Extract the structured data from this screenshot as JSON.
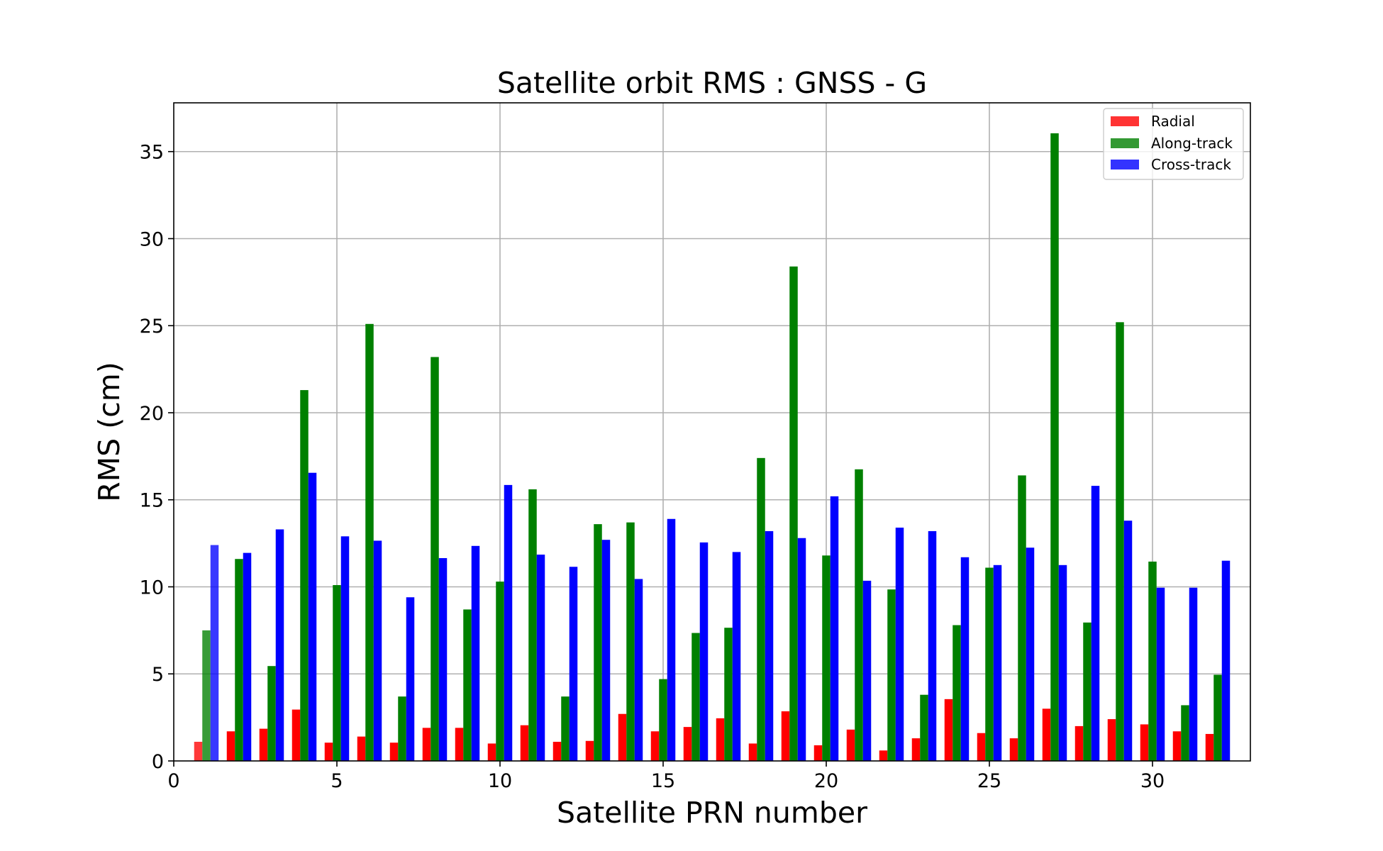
{
  "chart_data": {
    "type": "bar",
    "title": "Satellite orbit RMS : GNSS - G",
    "xlabel": "Satellite PRN number",
    "ylabel": "RMS (cm)",
    "xlim": [
      0,
      33
    ],
    "ylim": [
      0,
      37.8
    ],
    "xticks": [
      0,
      5,
      10,
      15,
      20,
      25,
      30
    ],
    "yticks": [
      0,
      5,
      10,
      15,
      20,
      25,
      30,
      35
    ],
    "grid": true,
    "legend_position": "top-right",
    "x": [
      1,
      2,
      3,
      4,
      5,
      6,
      7,
      8,
      9,
      10,
      11,
      12,
      13,
      14,
      15,
      16,
      17,
      18,
      19,
      20,
      21,
      22,
      23,
      24,
      25,
      26,
      27,
      28,
      29,
      30,
      31,
      32
    ],
    "series": [
      {
        "name": "Radial",
        "color": "#ff0000",
        "values": [
          1.1,
          1.7,
          1.85,
          2.95,
          1.05,
          1.4,
          1.05,
          1.9,
          1.9,
          1.0,
          2.05,
          1.1,
          1.15,
          2.7,
          1.7,
          1.95,
          2.45,
          1.0,
          2.85,
          0.9,
          1.8,
          0.6,
          1.3,
          3.55,
          1.6,
          1.3,
          3.0,
          2.0,
          2.4,
          2.1,
          1.7,
          1.55
        ]
      },
      {
        "name": "Along-track",
        "color": "#008000",
        "values": [
          7.5,
          11.6,
          5.45,
          21.3,
          10.1,
          25.1,
          3.7,
          23.2,
          8.7,
          10.3,
          15.6,
          3.7,
          13.6,
          13.7,
          4.7,
          7.35,
          7.65,
          17.4,
          28.4,
          11.8,
          16.75,
          9.85,
          3.8,
          7.8,
          11.1,
          16.4,
          36.05,
          7.95,
          25.2,
          11.45,
          3.2,
          4.95
        ]
      },
      {
        "name": "Cross-track",
        "color": "#0000ff",
        "values": [
          12.4,
          11.95,
          13.3,
          16.55,
          12.9,
          12.65,
          9.4,
          11.65,
          12.35,
          15.85,
          11.85,
          11.15,
          12.7,
          10.45,
          13.9,
          12.55,
          12.0,
          13.2,
          12.8,
          15.2,
          10.35,
          13.4,
          13.2,
          11.7,
          11.25,
          12.25,
          11.25,
          15.8,
          13.8,
          9.95,
          9.95,
          11.5
        ]
      }
    ]
  }
}
